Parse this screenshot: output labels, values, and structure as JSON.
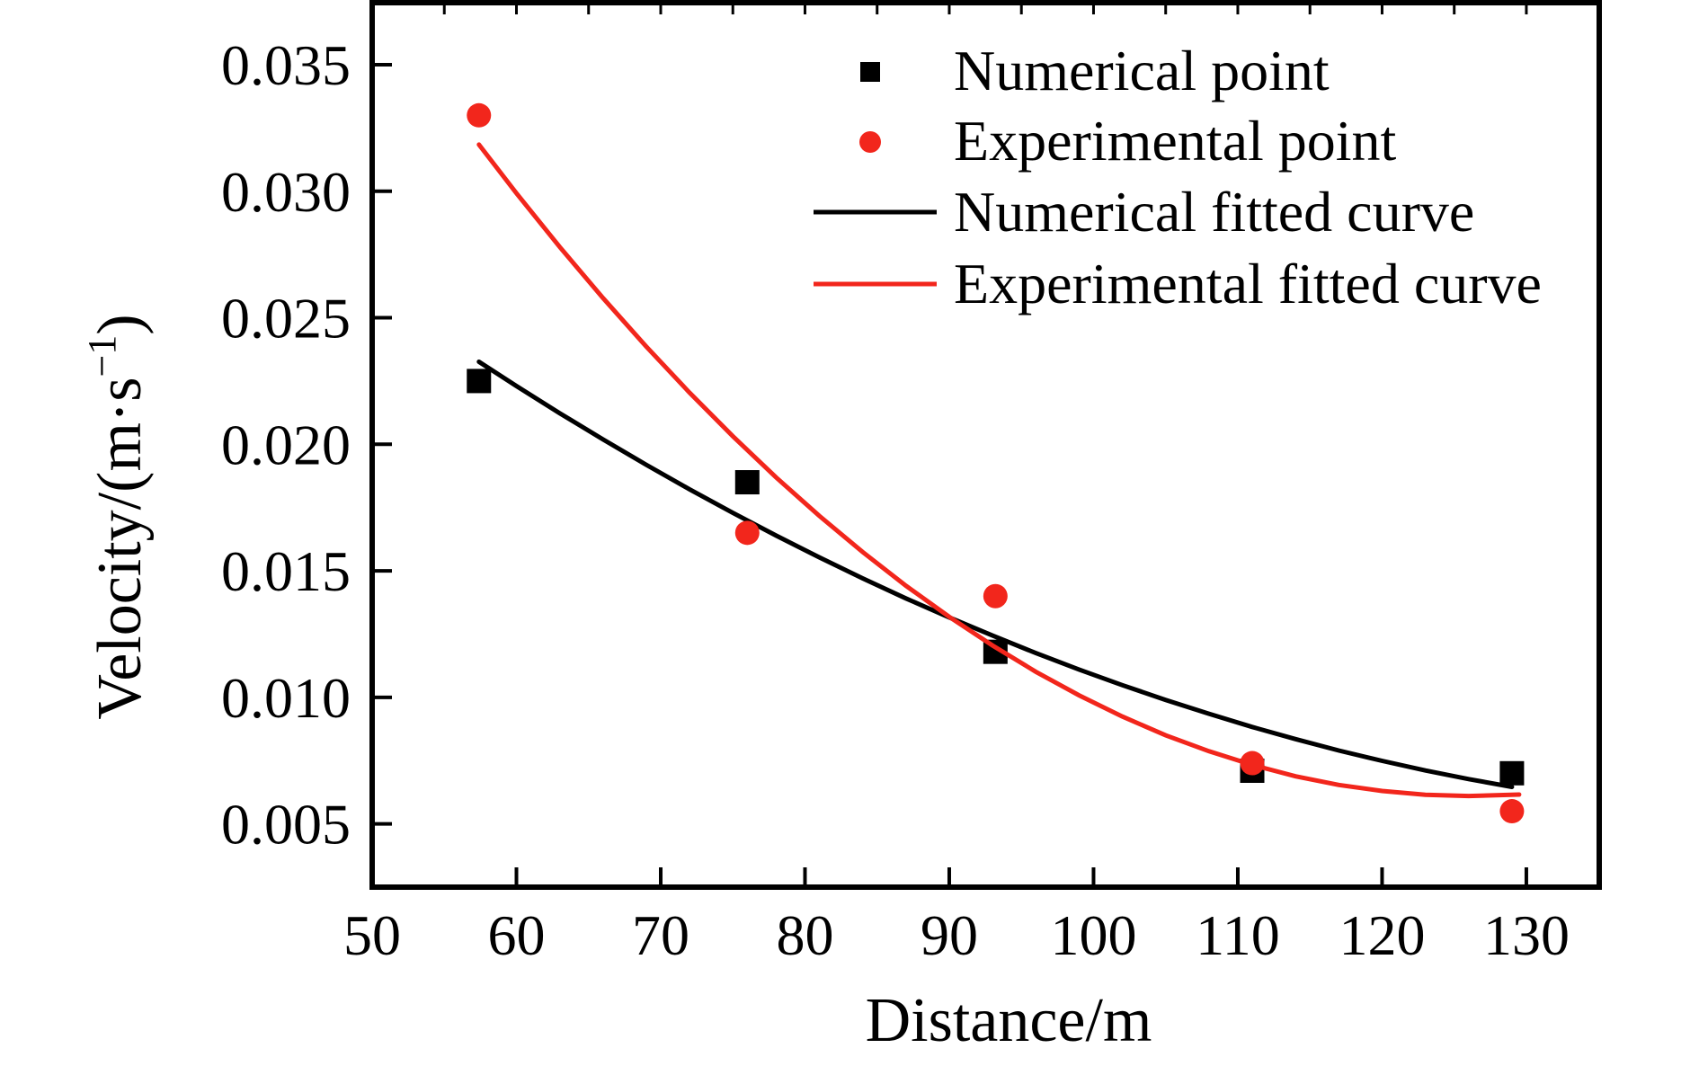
{
  "figure": {
    "background": "#ffffff",
    "axis_color": "#000000",
    "accent_red": "#f2261c"
  },
  "labels": {
    "y_main": "Velocity/(m·s",
    "y_sup": "−1",
    "y_close": ")"
  },
  "chart_data": {
    "type": "scatter",
    "title": "",
    "xlabel": "Distance/m",
    "ylabel": "Velocity/(m·s⁻¹)",
    "xlim": [
      50,
      135.05
    ],
    "ylim": [
      0.0025,
      0.03745
    ],
    "grid": false,
    "legend_position": "upper right",
    "x_ticks": [
      50,
      60,
      70,
      80,
      90,
      100,
      110,
      120,
      130
    ],
    "x_tick_labels": [
      "50",
      "60",
      "70",
      "80",
      "90",
      "100",
      "110",
      "120",
      "130"
    ],
    "top_minor_tick_step": 5,
    "y_ticks": [
      0.005,
      0.01,
      0.015,
      0.02,
      0.025,
      0.03,
      0.035
    ],
    "y_tick_labels": [
      "0.005",
      "0.010",
      "0.015",
      "0.020",
      "0.025",
      "0.030",
      "0.035"
    ],
    "series": [
      {
        "name": "Numerical point",
        "type": "scatter",
        "marker": "square",
        "color": "#000000",
        "points": [
          [
            57.4,
            0.0225
          ],
          [
            76,
            0.0185
          ],
          [
            93.2,
            0.0118
          ],
          [
            111,
            0.0071
          ],
          [
            129,
            0.007
          ]
        ]
      },
      {
        "name": "Experimental point",
        "type": "scatter",
        "marker": "circle",
        "color": "#f2261c",
        "points": [
          [
            57.4,
            0.033
          ],
          [
            76,
            0.0165
          ],
          [
            93.2,
            0.014
          ],
          [
            111,
            0.0074
          ],
          [
            129,
            0.0055
          ]
        ]
      },
      {
        "name": "Numerical fitted curve",
        "type": "line",
        "color": "#000000",
        "points": [
          [
            57.4,
            0.02326
          ],
          [
            60,
            0.0223
          ],
          [
            63,
            0.02123
          ],
          [
            66,
            0.02019
          ],
          [
            69,
            0.01919
          ],
          [
            72,
            0.01822
          ],
          [
            75,
            0.01729
          ],
          [
            78,
            0.01639
          ],
          [
            81,
            0.01553
          ],
          [
            84,
            0.0147
          ],
          [
            87,
            0.01391
          ],
          [
            90,
            0.01316
          ],
          [
            93,
            0.01244
          ],
          [
            96,
            0.01175
          ],
          [
            99,
            0.0111
          ],
          [
            102,
            0.01048
          ],
          [
            105,
            0.0099
          ],
          [
            108,
            0.00935
          ],
          [
            111,
            0.00883
          ],
          [
            114,
            0.00835
          ],
          [
            117,
            0.0079
          ],
          [
            120,
            0.00749
          ],
          [
            123,
            0.00711
          ],
          [
            126,
            0.00677
          ],
          [
            129,
            0.00646
          ]
        ]
      },
      {
        "name": "Experimental fitted curve",
        "type": "line",
        "color": "#f2261c",
        "points": [
          [
            57.4,
            0.03184
          ],
          [
            60,
            0.02992
          ],
          [
            63,
            0.0278
          ],
          [
            66,
            0.02578
          ],
          [
            69,
            0.02386
          ],
          [
            72,
            0.02204
          ],
          [
            75,
            0.02032
          ],
          [
            78,
            0.01869
          ],
          [
            81,
            0.01717
          ],
          [
            84,
            0.01574
          ],
          [
            87,
            0.01441
          ],
          [
            90,
            0.01318
          ],
          [
            93,
            0.01205
          ],
          [
            96,
            0.01101
          ],
          [
            99,
            0.01008
          ],
          [
            102,
            0.00924
          ],
          [
            105,
            0.0085
          ],
          [
            108,
            0.00787
          ],
          [
            111,
            0.00733
          ],
          [
            114,
            0.00688
          ],
          [
            117,
            0.00654
          ],
          [
            120,
            0.0063
          ],
          [
            123,
            0.00615
          ],
          [
            126,
            0.0061
          ],
          [
            129.5,
            0.00616
          ]
        ]
      }
    ]
  }
}
